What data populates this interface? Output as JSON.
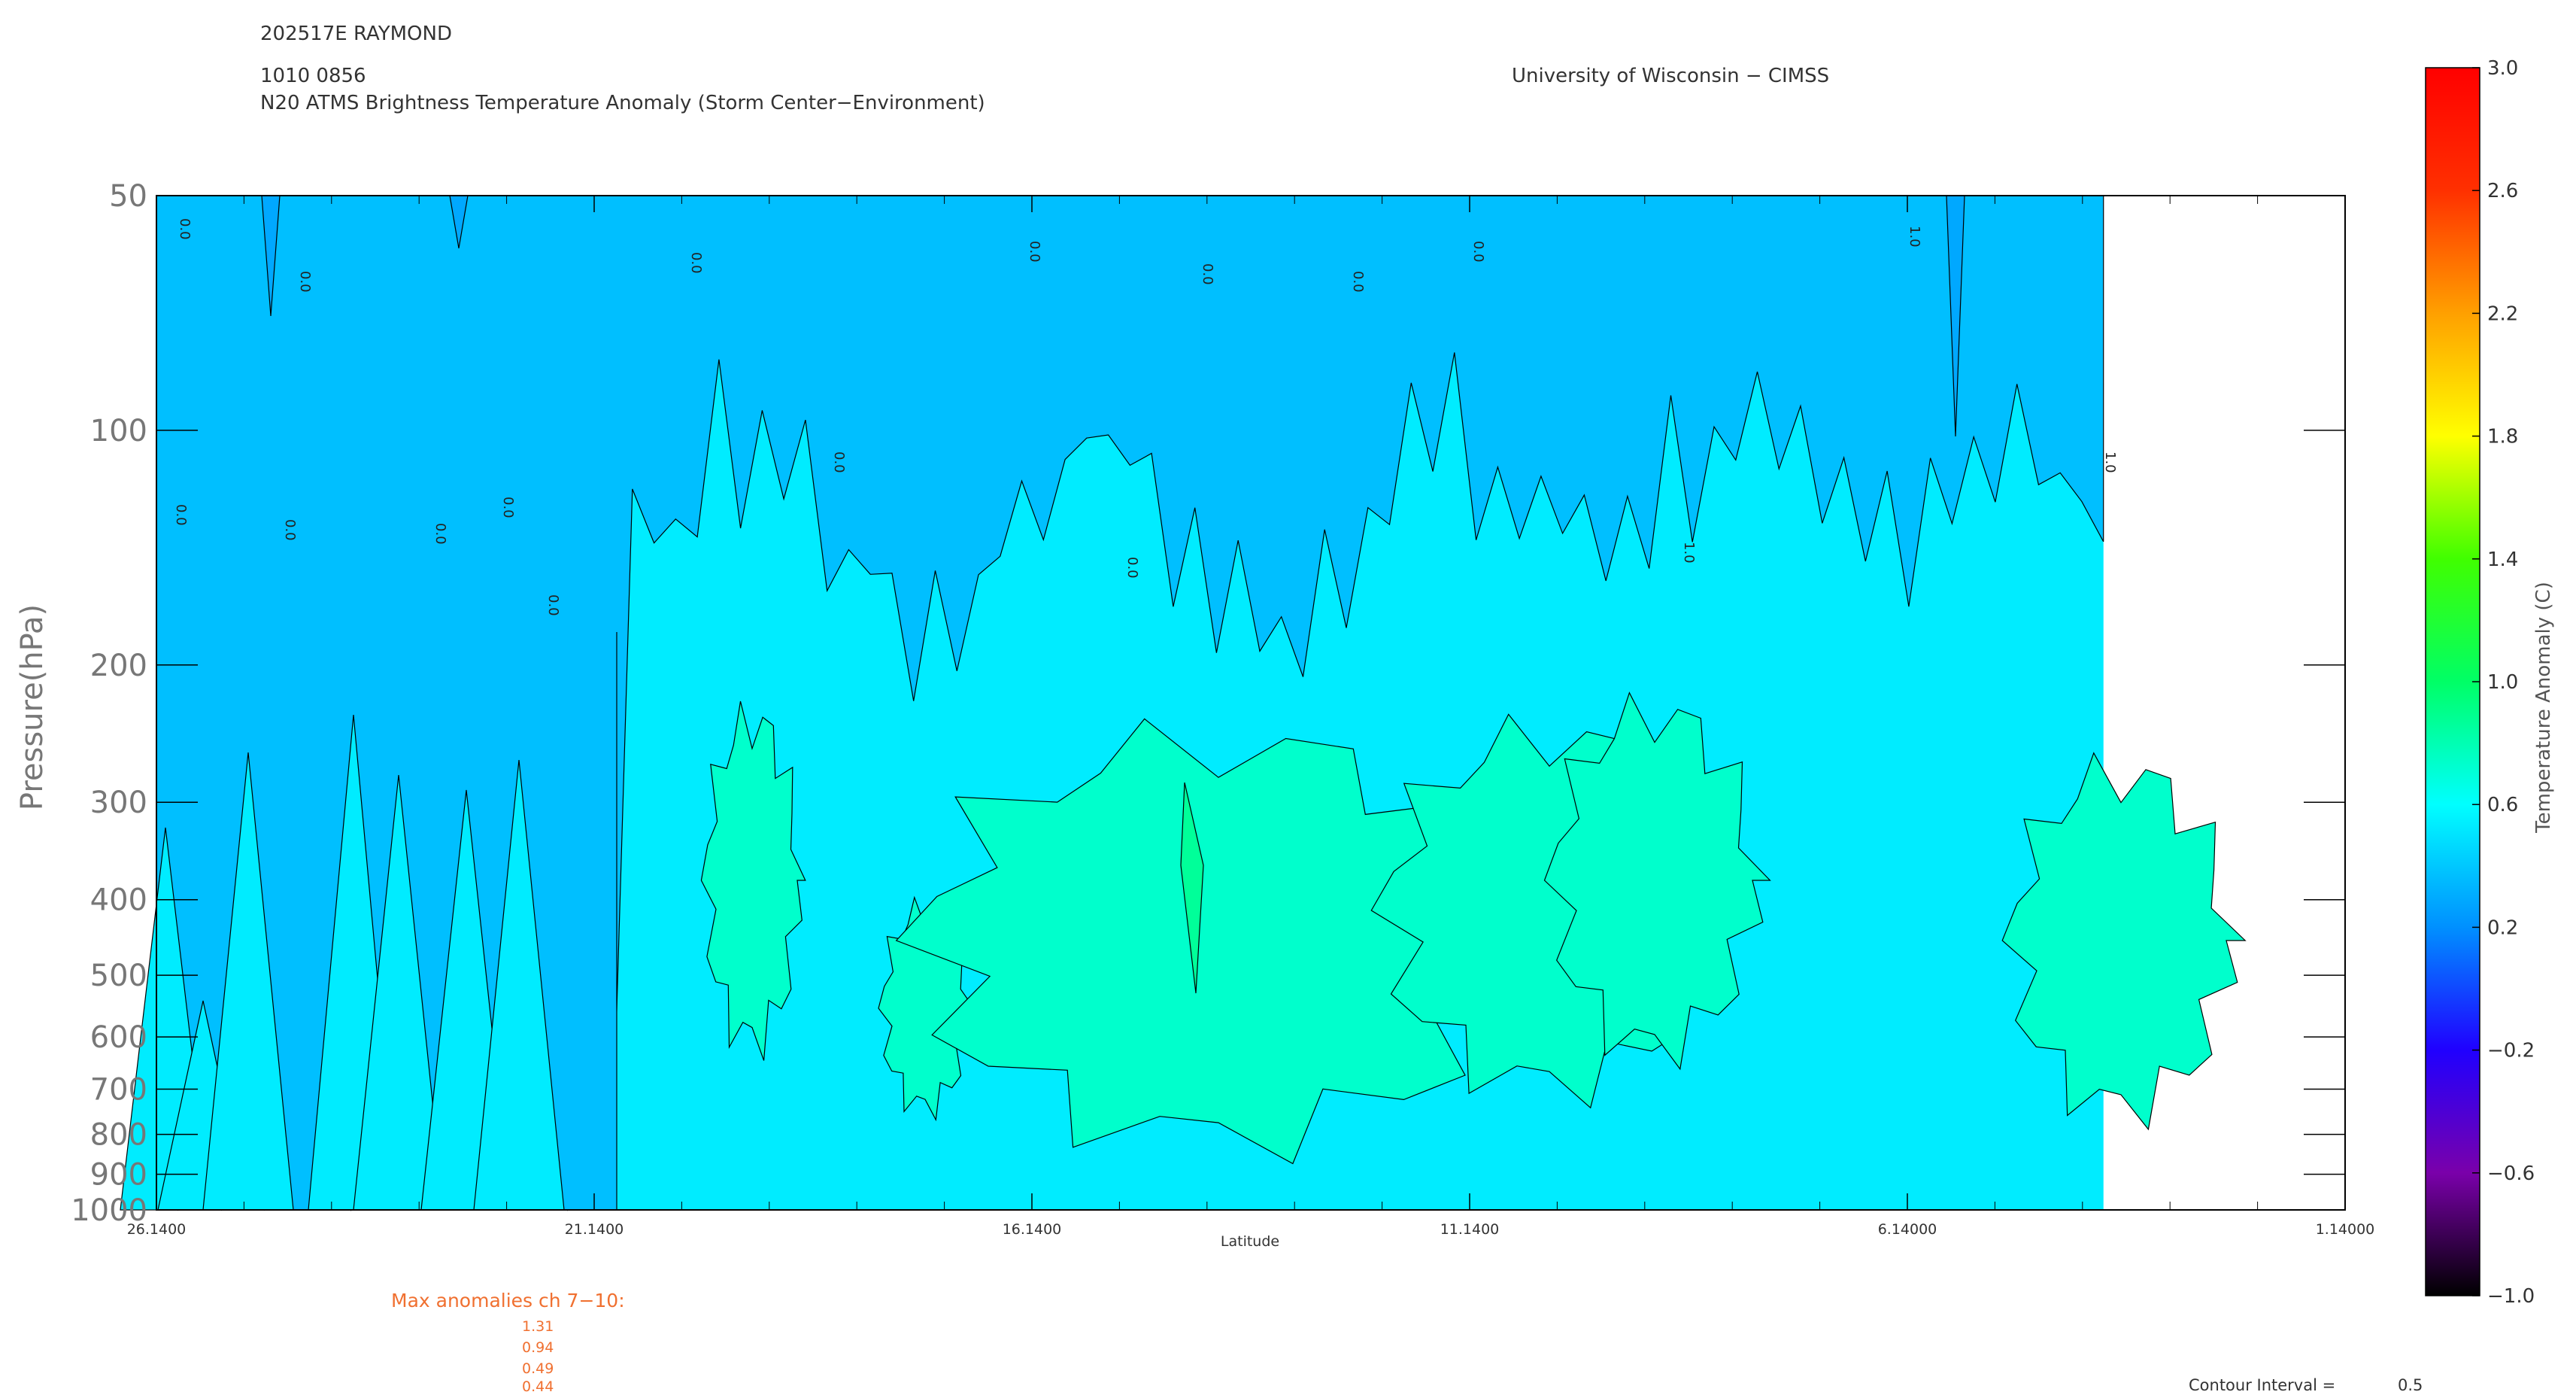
{
  "header": {
    "storm_id": "202517E RAYMOND",
    "datetime": "1010 0856",
    "product_title": "N20 ATMS Brightness Temperature Anomaly (Storm Center−Environment)",
    "institution": "University of Wisconsin − CIMSS"
  },
  "max_anomalies": {
    "label": "Max anomalies ch 7−10:",
    "values": [
      "1.31",
      "0.94",
      "0.49",
      "0.44"
    ]
  },
  "contour_interval": {
    "label": "Contour Interval =",
    "value": "0.5"
  },
  "colors": {
    "fill_low": "#00bfff",
    "fill_mid": "#00ecff",
    "fill_high": "#00ffcc",
    "fill_peak": "#00ff99",
    "fill_deep": "#00a8ff",
    "grid_line": "#000000"
  },
  "chart_data": {
    "type": "heatmap",
    "xlabel": "Latitude",
    "ylabel": "Pressure(hPa)",
    "x_axis": {
      "range": [
        26.14,
        1.14
      ],
      "reversed": true,
      "tick_labels": [
        "26.1400",
        "21.1400",
        "16.1400",
        "11.1400",
        "6.14000",
        "1.14000"
      ],
      "tick_values": [
        26.14,
        21.14,
        16.14,
        11.14,
        6.14,
        1.14
      ]
    },
    "y_axis": {
      "scale": "log",
      "range": [
        1000,
        50
      ],
      "tick_labels": [
        "50",
        "100",
        "200",
        "300",
        "400",
        "500",
        "600",
        "700",
        "800",
        "900",
        "1000"
      ],
      "tick_values": [
        50,
        100,
        200,
        300,
        400,
        500,
        600,
        700,
        800,
        900,
        1000
      ]
    },
    "data_extent_lat": [
      26.14,
      3.9
    ],
    "colorbar": {
      "label": "Temperature Anomaly (C)",
      "range": [
        -1.0,
        3.0
      ],
      "tick_labels": [
        "3.0",
        "2.6",
        "2.2",
        "1.8",
        "1.4",
        "1.0",
        "0.6",
        "0.2",
        "−0.2",
        "−0.6",
        "−1.0"
      ],
      "tick_values": [
        3.0,
        2.6,
        2.2,
        1.8,
        1.4,
        1.0,
        0.6,
        0.2,
        -0.2,
        -0.6,
        -1.0
      ],
      "colors": [
        "#000000",
        "#7a00aa",
        "#2000ff",
        "#0090ff",
        "#00ffff",
        "#00ff66",
        "#40ff00",
        "#ffff00",
        "#ffa000",
        "#ff3000",
        "#ff0000"
      ]
    },
    "contour_labels": [
      "0.0",
      "0.0",
      "0.0",
      "0.0",
      "0.0",
      "0.0",
      "0.0",
      "0.0",
      "0.0",
      "0.0",
      "0.0",
      "0.0",
      "0.0",
      "0.0",
      "1.0",
      "1.0",
      "1.0"
    ]
  }
}
